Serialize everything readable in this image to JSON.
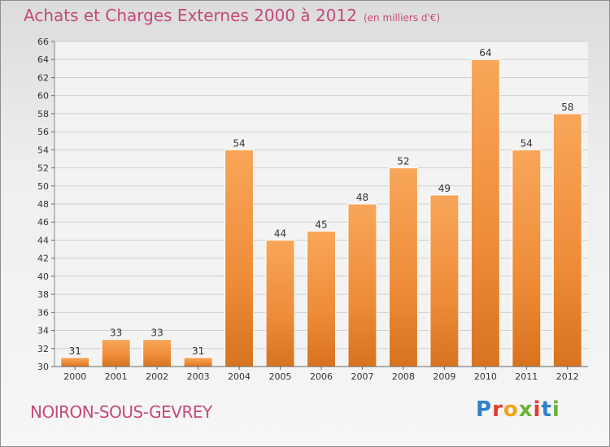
{
  "title": "Achats et Charges Externes 2000 à 2012",
  "subtitle": "(en milliers d'€)",
  "commune": "NOIRON-SOUS-GEVREY",
  "brand": {
    "letters": [
      "P",
      "r",
      "o",
      "x",
      "i",
      "t",
      "i"
    ],
    "colors": [
      "#2f7fc9",
      "#e23b2e",
      "#f2a317",
      "#6cb23a",
      "#e23b2e",
      "#2f7fc9",
      "#6cb23a"
    ]
  },
  "chart_data": {
    "type": "bar",
    "categories": [
      "2000",
      "2001",
      "2002",
      "2003",
      "2004",
      "2005",
      "2006",
      "2007",
      "2008",
      "2009",
      "2010",
      "2011",
      "2012"
    ],
    "values": [
      31,
      33,
      33,
      31,
      54,
      44,
      45,
      48,
      52,
      49,
      64,
      54,
      58
    ],
    "title": "Achats et Charges Externes 2000 à 2012",
    "subtitle": "(en milliers d'€)",
    "ylim": [
      30,
      66
    ],
    "yticks": [
      30,
      32,
      34,
      36,
      38,
      40,
      42,
      44,
      46,
      48,
      50,
      52,
      54,
      56,
      58,
      60,
      62,
      64,
      66
    ],
    "grid": true,
    "bar_color": "#f0923a"
  }
}
